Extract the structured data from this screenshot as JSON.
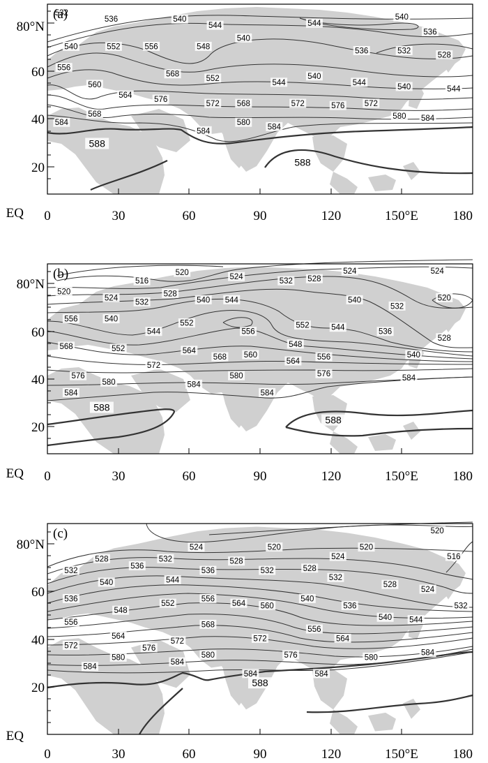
{
  "chart_data": [
    {
      "type": "contour_map",
      "panel_label": "(a)",
      "x_ticks": [
        "0",
        "30",
        "60",
        "90",
        "120",
        "150°E",
        "180"
      ],
      "y_ticks": [
        "EQ",
        "20",
        "40",
        "60",
        "80°N"
      ],
      "xlim": [
        0,
        180
      ],
      "ylim": [
        0,
        90
      ],
      "contour_interval": 4,
      "bold_contours": [
        588
      ],
      "contour_labels": [
        {
          "value": "532",
          "lon": 6,
          "lat": 86
        },
        {
          "value": "536",
          "lon": 27,
          "lat": 83
        },
        {
          "value": "540",
          "lon": 56,
          "lat": 83
        },
        {
          "value": "544",
          "lon": 71,
          "lat": 80
        },
        {
          "value": "544",
          "lon": 113,
          "lat": 81
        },
        {
          "value": "540",
          "lon": 150,
          "lat": 84
        },
        {
          "value": "536",
          "lon": 162,
          "lat": 77
        },
        {
          "value": "540",
          "lon": 10,
          "lat": 70
        },
        {
          "value": "552",
          "lon": 28,
          "lat": 70
        },
        {
          "value": "556",
          "lon": 44,
          "lat": 70
        },
        {
          "value": "548",
          "lon": 66,
          "lat": 70
        },
        {
          "value": "540",
          "lon": 83,
          "lat": 74
        },
        {
          "value": "536",
          "lon": 133,
          "lat": 68
        },
        {
          "value": "532",
          "lon": 151,
          "lat": 68
        },
        {
          "value": "528",
          "lon": 168,
          "lat": 66
        },
        {
          "value": "556",
          "lon": 7,
          "lat": 60
        },
        {
          "value": "568",
          "lon": 53,
          "lat": 57
        },
        {
          "value": "552",
          "lon": 70,
          "lat": 55
        },
        {
          "value": "560",
          "lon": 20,
          "lat": 52
        },
        {
          "value": "564",
          "lon": 33,
          "lat": 47
        },
        {
          "value": "540",
          "lon": 113,
          "lat": 56
        },
        {
          "value": "544",
          "lon": 98,
          "lat": 53
        },
        {
          "value": "544",
          "lon": 132,
          "lat": 53
        },
        {
          "value": "540",
          "lon": 151,
          "lat": 51
        },
        {
          "value": "544",
          "lon": 172,
          "lat": 50
        },
        {
          "value": "576",
          "lon": 48,
          "lat": 45
        },
        {
          "value": "572",
          "lon": 70,
          "lat": 43
        },
        {
          "value": "568",
          "lon": 83,
          "lat": 43
        },
        {
          "value": "572",
          "lon": 106,
          "lat": 43
        },
        {
          "value": "576",
          "lon": 123,
          "lat": 42
        },
        {
          "value": "572",
          "lon": 137,
          "lat": 43
        },
        {
          "value": "568",
          "lon": 20,
          "lat": 38
        },
        {
          "value": "580",
          "lon": 83,
          "lat": 34
        },
        {
          "value": "580",
          "lon": 149,
          "lat": 37
        },
        {
          "value": "584",
          "lon": 161,
          "lat": 36
        },
        {
          "value": "584",
          "lon": 6,
          "lat": 34
        },
        {
          "value": "584",
          "lon": 66,
          "lat": 30
        },
        {
          "value": "584",
          "lon": 96,
          "lat": 32
        },
        {
          "value": "588",
          "lon": 21,
          "lat": 24,
          "bold": true
        },
        {
          "value": "588",
          "lon": 108,
          "lat": 15,
          "bold": true
        }
      ]
    },
    {
      "type": "contour_map",
      "panel_label": "(b)",
      "x_ticks": [
        "0",
        "30",
        "60",
        "90",
        "120",
        "150°E",
        "180"
      ],
      "y_ticks": [
        "EQ",
        "20",
        "40",
        "60",
        "80°N"
      ],
      "xlim": [
        0,
        180
      ],
      "ylim": [
        0,
        90
      ],
      "contour_interval": 4,
      "bold_contours": [
        588
      ],
      "contour_labels": [
        {
          "value": "516",
          "lon": 40,
          "lat": 82
        },
        {
          "value": "520",
          "lon": 57,
          "lat": 86
        },
        {
          "value": "524",
          "lon": 80,
          "lat": 84
        },
        {
          "value": "532",
          "lon": 101,
          "lat": 82
        },
        {
          "value": "528",
          "lon": 113,
          "lat": 83
        },
        {
          "value": "524",
          "lon": 128,
          "lat": 88
        },
        {
          "value": "524",
          "lon": 165,
          "lat": 87
        },
        {
          "value": "520",
          "lon": 7,
          "lat": 77
        },
        {
          "value": "524",
          "lon": 27,
          "lat": 74
        },
        {
          "value": "528",
          "lon": 52,
          "lat": 76
        },
        {
          "value": "532",
          "lon": 40,
          "lat": 72
        },
        {
          "value": "540",
          "lon": 66,
          "lat": 73
        },
        {
          "value": "544",
          "lon": 78,
          "lat": 73
        },
        {
          "value": "540",
          "lon": 130,
          "lat": 73
        },
        {
          "value": "532",
          "lon": 148,
          "lat": 70
        },
        {
          "value": "520",
          "lon": 168,
          "lat": 74
        },
        {
          "value": "556",
          "lon": 10,
          "lat": 64
        },
        {
          "value": "540",
          "lon": 27,
          "lat": 64
        },
        {
          "value": "552",
          "lon": 59,
          "lat": 62
        },
        {
          "value": "544",
          "lon": 45,
          "lat": 58
        },
        {
          "value": "556",
          "lon": 85,
          "lat": 58
        },
        {
          "value": "552",
          "lon": 108,
          "lat": 61
        },
        {
          "value": "544",
          "lon": 123,
          "lat": 60
        },
        {
          "value": "536",
          "lon": 143,
          "lat": 58
        },
        {
          "value": "528",
          "lon": 168,
          "lat": 55
        },
        {
          "value": "552",
          "lon": 30,
          "lat": 50
        },
        {
          "value": "568",
          "lon": 8,
          "lat": 51
        },
        {
          "value": "548",
          "lon": 105,
          "lat": 52
        },
        {
          "value": "564",
          "lon": 60,
          "lat": 49
        },
        {
          "value": "568",
          "lon": 73,
          "lat": 46
        },
        {
          "value": "560",
          "lon": 86,
          "lat": 47
        },
        {
          "value": "564",
          "lon": 104,
          "lat": 44
        },
        {
          "value": "556",
          "lon": 117,
          "lat": 46
        },
        {
          "value": "540",
          "lon": 155,
          "lat": 47
        },
        {
          "value": "572",
          "lon": 45,
          "lat": 42
        },
        {
          "value": "576",
          "lon": 13,
          "lat": 37
        },
        {
          "value": "580",
          "lon": 26,
          "lat": 34
        },
        {
          "value": "580",
          "lon": 80,
          "lat": 37
        },
        {
          "value": "576",
          "lon": 117,
          "lat": 38
        },
        {
          "value": "584",
          "lon": 153,
          "lat": 36
        },
        {
          "value": "584",
          "lon": 10,
          "lat": 29
        },
        {
          "value": "584",
          "lon": 62,
          "lat": 33
        },
        {
          "value": "584",
          "lon": 93,
          "lat": 29
        },
        {
          "value": "588",
          "lon": 23,
          "lat": 22,
          "bold": true
        },
        {
          "value": "588",
          "lon": 121,
          "lat": 16,
          "bold": true
        }
      ]
    },
    {
      "type": "contour_map",
      "panel_label": "(c)",
      "x_ticks": [
        "0",
        "30",
        "60",
        "90",
        "120",
        "150°E",
        "180"
      ],
      "y_ticks": [
        "EQ",
        "20",
        "40",
        "60",
        "80°N"
      ],
      "xlim": [
        0,
        180
      ],
      "ylim": [
        0,
        90
      ],
      "contour_interval": 4,
      "bold_contours": [
        588
      ],
      "contour_labels": [
        {
          "value": "520",
          "lon": 165,
          "lat": 87
        },
        {
          "value": "524",
          "lon": 63,
          "lat": 80
        },
        {
          "value": "520",
          "lon": 96,
          "lat": 80
        },
        {
          "value": "520",
          "lon": 135,
          "lat": 80
        },
        {
          "value": "516",
          "lon": 172,
          "lat": 76
        },
        {
          "value": "528",
          "lon": 23,
          "lat": 75
        },
        {
          "value": "532",
          "lon": 50,
          "lat": 75
        },
        {
          "value": "528",
          "lon": 80,
          "lat": 74
        },
        {
          "value": "524",
          "lon": 123,
          "lat": 76
        },
        {
          "value": "532",
          "lon": 10,
          "lat": 70
        },
        {
          "value": "536",
          "lon": 38,
          "lat": 72
        },
        {
          "value": "536",
          "lon": 68,
          "lat": 70
        },
        {
          "value": "532",
          "lon": 93,
          "lat": 70
        },
        {
          "value": "528",
          "lon": 111,
          "lat": 71
        },
        {
          "value": "532",
          "lon": 122,
          "lat": 67
        },
        {
          "value": "528",
          "lon": 145,
          "lat": 64
        },
        {
          "value": "524",
          "lon": 161,
          "lat": 62
        },
        {
          "value": "540",
          "lon": 25,
          "lat": 65
        },
        {
          "value": "544",
          "lon": 53,
          "lat": 66
        },
        {
          "value": "536",
          "lon": 10,
          "lat": 58
        },
        {
          "value": "540",
          "lon": 110,
          "lat": 58
        },
        {
          "value": "536",
          "lon": 128,
          "lat": 55
        },
        {
          "value": "532",
          "lon": 175,
          "lat": 55
        },
        {
          "value": "552",
          "lon": 51,
          "lat": 56
        },
        {
          "value": "556",
          "lon": 68,
          "lat": 58
        },
        {
          "value": "564",
          "lon": 81,
          "lat": 56
        },
        {
          "value": "560",
          "lon": 93,
          "lat": 55
        },
        {
          "value": "548",
          "lon": 31,
          "lat": 53
        },
        {
          "value": "540",
          "lon": 143,
          "lat": 50
        },
        {
          "value": "544",
          "lon": 156,
          "lat": 49
        },
        {
          "value": "556",
          "lon": 10,
          "lat": 48
        },
        {
          "value": "568",
          "lon": 68,
          "lat": 47
        },
        {
          "value": "556",
          "lon": 113,
          "lat": 45
        },
        {
          "value": "564",
          "lon": 30,
          "lat": 42
        },
        {
          "value": "572",
          "lon": 55,
          "lat": 40
        },
        {
          "value": "572",
          "lon": 90,
          "lat": 41
        },
        {
          "value": "564",
          "lon": 125,
          "lat": 41
        },
        {
          "value": "572",
          "lon": 10,
          "lat": 38
        },
        {
          "value": "576",
          "lon": 43,
          "lat": 37
        },
        {
          "value": "576",
          "lon": 103,
          "lat": 34
        },
        {
          "value": "580",
          "lon": 30,
          "lat": 33
        },
        {
          "value": "580",
          "lon": 68,
          "lat": 34
        },
        {
          "value": "580",
          "lon": 137,
          "lat": 33
        },
        {
          "value": "584",
          "lon": 161,
          "lat": 35
        },
        {
          "value": "584",
          "lon": 18,
          "lat": 29
        },
        {
          "value": "584",
          "lon": 55,
          "lat": 31
        },
        {
          "value": "584",
          "lon": 86,
          "lat": 26
        },
        {
          "value": "584",
          "lon": 116,
          "lat": 26
        },
        {
          "value": "588",
          "lon": 90,
          "lat": 22,
          "bold": true
        }
      ]
    }
  ]
}
